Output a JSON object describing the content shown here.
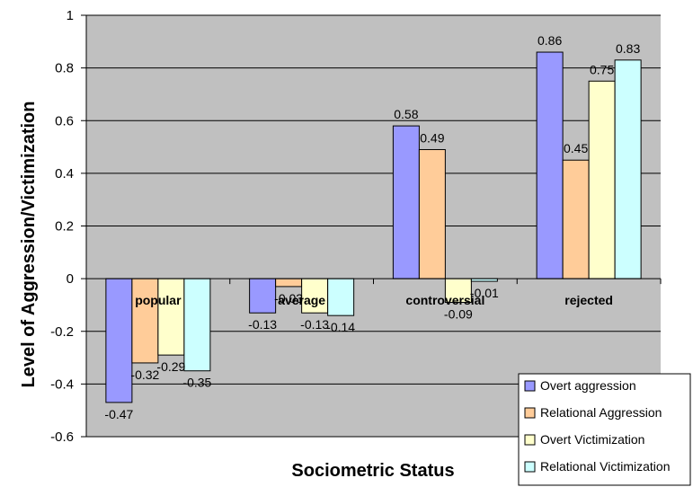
{
  "chart_data": {
    "type": "bar",
    "xlabel": "Sociometric Status",
    "ylabel": "Level of Aggression/Victimization",
    "categories": [
      "popular",
      "average",
      "controversial",
      "rejected"
    ],
    "ylim": [
      -0.6,
      1
    ],
    "yticks": [
      "1",
      "0.8",
      "0.6",
      "0.4",
      "0.2",
      "0",
      "-0.2",
      "-0.4",
      "-0.6"
    ],
    "ytick_values": [
      1,
      0.8,
      0.6,
      0.4,
      0.2,
      0,
      -0.2,
      -0.4,
      -0.6
    ],
    "grid": true,
    "legend_position": "bottom-right",
    "series": [
      {
        "name": "Overt aggression",
        "color": "#9999ff",
        "values": [
          -0.47,
          -0.13,
          0.58,
          0.86
        ],
        "labels": [
          "-0.47",
          "-0.13",
          "0.58",
          "0.86"
        ]
      },
      {
        "name": "Relational Aggression",
        "color": "#ffcc99",
        "values": [
          -0.32,
          -0.03,
          0.49,
          0.45
        ],
        "labels": [
          "-0.32",
          "-0.03",
          "0.49",
          "0.45"
        ]
      },
      {
        "name": "Overt Victimization",
        "color": "#ffffcc",
        "values": [
          -0.29,
          -0.13,
          -0.09,
          0.75
        ],
        "labels": [
          "-0.29",
          "-0.13",
          "-0.09",
          "0.75"
        ]
      },
      {
        "name": "Relational Victimization",
        "color": "#ccffff",
        "values": [
          -0.35,
          -0.14,
          -0.01,
          0.83
        ],
        "labels": [
          "-0.35",
          "-0.14",
          "-0.01",
          "0.83"
        ]
      }
    ],
    "plot_background": "#c0c0c0"
  }
}
